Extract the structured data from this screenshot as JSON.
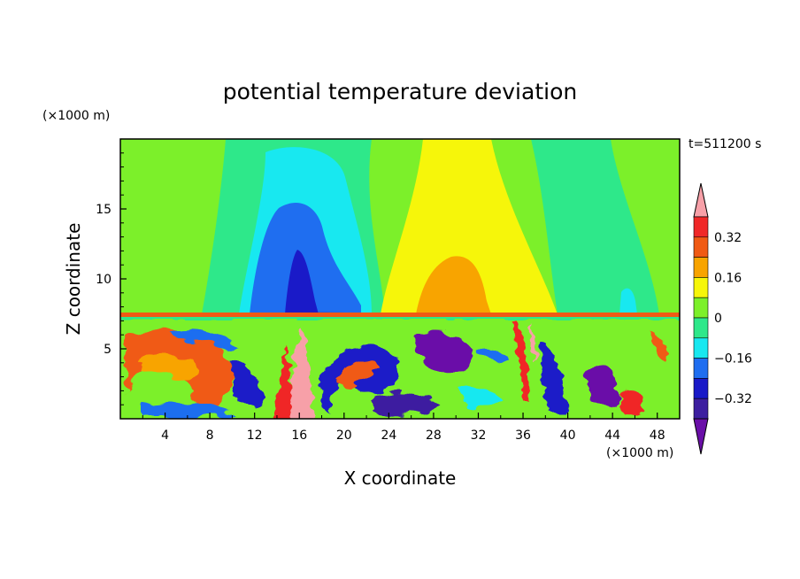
{
  "chart_data": {
    "type": "heatmap",
    "title": "potential temperature deviation",
    "xlabel": "X coordinate",
    "ylabel": "Z coordinate",
    "x_unit": "(×1000 m)",
    "y_unit": "(×1000 m)",
    "time_label": "t=511200 s",
    "xlim": [
      0,
      50
    ],
    "ylim": [
      0,
      20
    ],
    "x_ticks": [
      4,
      8,
      12,
      16,
      20,
      24,
      28,
      32,
      36,
      40,
      44,
      48
    ],
    "y_ticks": [
      5,
      10,
      15
    ],
    "colorbar": {
      "levels": [
        -0.4,
        -0.32,
        -0.24,
        -0.16,
        -0.08,
        0,
        0.08,
        0.16,
        0.24,
        0.32,
        0.4
      ],
      "labeled_levels": [
        0.32,
        0.16,
        0,
        -0.16,
        -0.32
      ],
      "tick_labels": [
        "0.32",
        "0.16",
        "0",
        "−0.16",
        "−0.32"
      ],
      "colors": [
        "#6a0fa8",
        "#3d1fa0",
        "#1a1ac8",
        "#1f6ef0",
        "#18e8f0",
        "#2ee88a",
        "#7cf02a",
        "#f6f60a",
        "#f8a400",
        "#f05a14",
        "#f02828",
        "#f7a0a8"
      ],
      "extend": "both"
    },
    "regions": {
      "upper_layer_blobs": [
        {
          "x": 15.5,
          "z": 12,
          "value": -0.3
        },
        {
          "x": 30,
          "z": 10.5,
          "value": 0.18
        },
        {
          "x": 46,
          "z": 11,
          "value": -0.12
        }
      ],
      "interface_height": 7.2,
      "lower_layer": "turbulent mixed layer with strong positive and negative anomalies"
    }
  }
}
